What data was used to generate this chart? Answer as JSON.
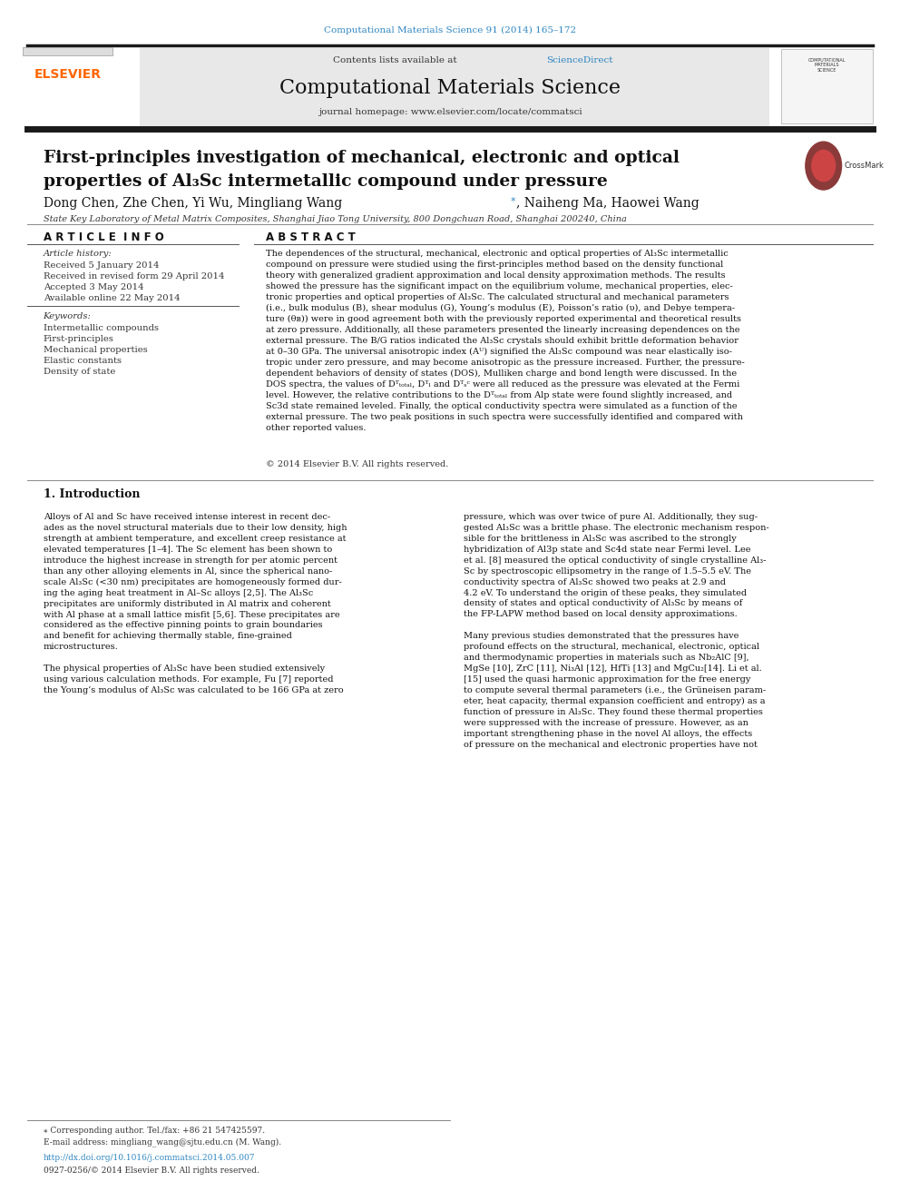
{
  "page_width": 9.92,
  "page_height": 13.23,
  "bg_color": "#ffffff",
  "journal_ref": "Computational Materials Science 91 (2014) 165–172",
  "journal_ref_color": "#2E86C1",
  "contents_text": "Contents lists available at ",
  "sciencedirect_text": "ScienceDirect",
  "sciencedirect_color": "#2E86C1",
  "journal_name": "Computational Materials Science",
  "journal_homepage": "journal homepage: www.elsevier.com/locate/commatsci",
  "header_bg": "#e8e8e8",
  "thick_bar_color": "#1a1a1a",
  "elsevier_color": "#FF6600",
  "paper_title_line1": "First-principles investigation of mechanical, electronic and optical",
  "paper_title_line2": "properties of Al₃Sc intermetallic compound under pressure",
  "affiliation": "State Key Laboratory of Metal Matrix Composites, Shanghai Jiao Tong University, 800 Dongchuan Road, Shanghai 200240, China",
  "article_info_header": "A R T I C L E  I N F O",
  "abstract_header": "A B S T R A C T",
  "article_history_label": "Article history:",
  "received1": "Received 5 January 2014",
  "received2": "Received in revised form 29 April 2014",
  "accepted": "Accepted 3 May 2014",
  "available": "Available online 22 May 2014",
  "keywords_label": "Keywords:",
  "keyword1": "Intermetallic compounds",
  "keyword2": "First-principles",
  "keyword3": "Mechanical properties",
  "keyword4": "Elastic constants",
  "keyword5": "Density of state",
  "copyright": "© 2014 Elsevier B.V. All rights reserved.",
  "intro_header": "1. Introduction",
  "footnote_star": "⁎ Corresponding author. Tel./fax: +86 21 547425597.",
  "footnote_email": "E-mail address: mingliang_wang@sjtu.edu.cn (M. Wang).",
  "doi": "http://dx.doi.org/10.1016/j.commatsci.2014.05.007",
  "issn": "0927-0256/© 2014 Elsevier B.V. All rights reserved."
}
